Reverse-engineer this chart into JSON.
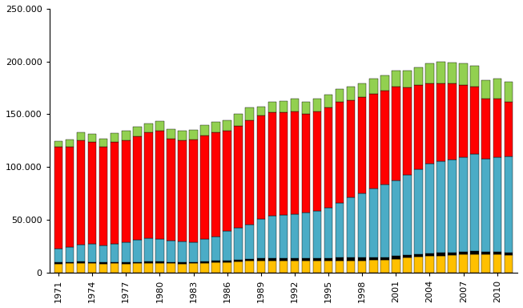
{
  "years": [
    1971,
    1972,
    1973,
    1974,
    1975,
    1976,
    1977,
    1978,
    1979,
    1980,
    1981,
    1982,
    1983,
    1984,
    1985,
    1986,
    1987,
    1988,
    1989,
    1990,
    1991,
    1992,
    1993,
    1994,
    1995,
    1996,
    1997,
    1998,
    1999,
    2000,
    2001,
    2002,
    2003,
    2004,
    2005,
    2006,
    2007,
    2008,
    2009,
    2010,
    2011
  ],
  "yellow": [
    8000,
    8500,
    9000,
    8500,
    8000,
    8500,
    8000,
    8500,
    9000,
    9000,
    8500,
    8000,
    8500,
    9000,
    9500,
    10000,
    10500,
    11000,
    11500,
    11500,
    11500,
    11500,
    11500,
    11500,
    11500,
    11500,
    11500,
    11500,
    12000,
    12000,
    13000,
    14000,
    15000,
    15500,
    16000,
    16500,
    17000,
    17500,
    17000,
    17000,
    16500
  ],
  "black": [
    1500,
    1500,
    1500,
    1500,
    1500,
    1500,
    1500,
    1500,
    1500,
    1500,
    1500,
    1500,
    1500,
    1500,
    1500,
    1500,
    1500,
    1500,
    2000,
    2000,
    2000,
    2000,
    2000,
    2000,
    2000,
    2500,
    2500,
    2500,
    2500,
    2500,
    2500,
    2500,
    2500,
    2500,
    2500,
    2500,
    2500,
    2500,
    2500,
    2500,
    2500
  ],
  "blue": [
    13000,
    14000,
    16000,
    17000,
    16000,
    17000,
    19000,
    21000,
    22000,
    21000,
    20000,
    20000,
    19000,
    21000,
    23000,
    28000,
    30000,
    33000,
    37000,
    40000,
    41000,
    42000,
    43000,
    45000,
    48000,
    52000,
    57000,
    61000,
    65000,
    69000,
    72000,
    76000,
    80000,
    85000,
    87000,
    88000,
    90000,
    92000,
    88000,
    90000,
    91000
  ],
  "red": [
    97000,
    95000,
    99000,
    97000,
    94000,
    97000,
    97000,
    98000,
    100000,
    103000,
    97000,
    96000,
    97000,
    98000,
    99000,
    95000,
    97000,
    99000,
    98000,
    98000,
    97000,
    97000,
    94000,
    94000,
    95000,
    96000,
    92000,
    91000,
    90000,
    89000,
    89000,
    83000,
    80000,
    76000,
    74000,
    72000,
    68000,
    64000,
    57000,
    55000,
    52000
  ],
  "green": [
    5000,
    7000,
    7000,
    7000,
    7000,
    8000,
    9000,
    9000,
    9000,
    9000,
    9000,
    9000,
    9000,
    10000,
    10000,
    10000,
    11000,
    12000,
    9000,
    10000,
    11000,
    12000,
    11000,
    12000,
    12000,
    12000,
    13000,
    13000,
    14000,
    14000,
    15000,
    16000,
    17000,
    19000,
    20000,
    20000,
    21000,
    20000,
    18000,
    19000,
    19000
  ],
  "colors": {
    "yellow": "#FFC000",
    "black": "#000000",
    "blue": "#4BACC6",
    "red": "#FF0000",
    "green": "#92D050"
  },
  "ylim": [
    0,
    250000
  ],
  "yticks": [
    0,
    50000,
    100000,
    150000,
    200000,
    250000
  ],
  "ytick_labels": [
    "0",
    "50.000",
    "100.000",
    "150.000",
    "200.000",
    "250.000"
  ],
  "xtick_years": [
    1971,
    1974,
    1977,
    1980,
    1983,
    1986,
    1989,
    1992,
    1995,
    1998,
    2001,
    2004,
    2007,
    2010
  ],
  "bgcolor": "#FFFFFF"
}
